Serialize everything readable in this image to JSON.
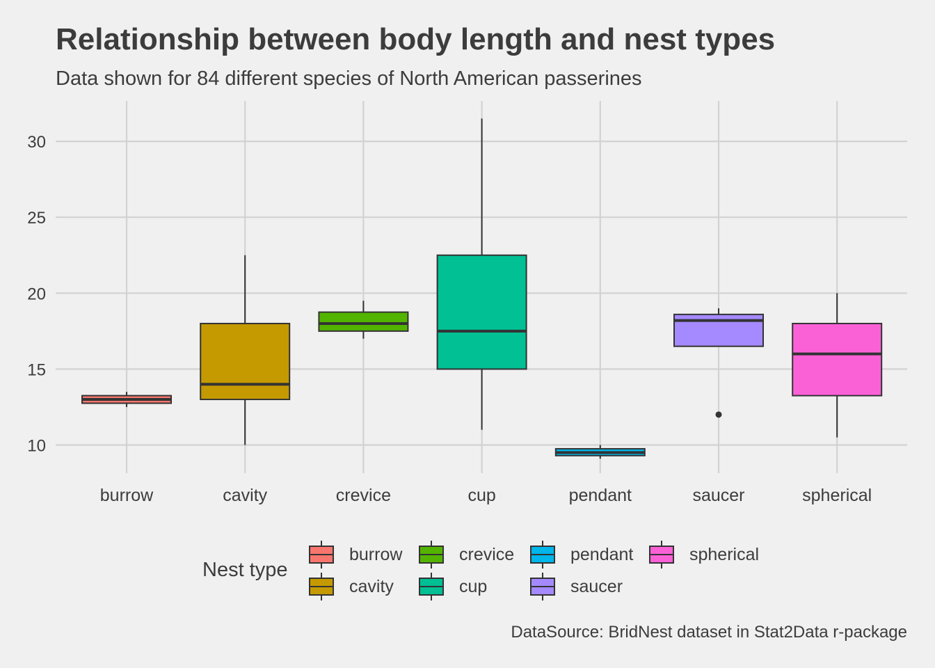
{
  "title": "Relationship between body length and nest types",
  "subtitle": "Data shown for 84 different species of North American passerines",
  "caption": "DataSource: BridNest dataset in Stat2Data r-package",
  "legend": {
    "title": "Nest type",
    "items": [
      "burrow",
      "crevice",
      "pendant",
      "spherical",
      "cavity",
      "cup",
      "saucer"
    ]
  },
  "colors": {
    "burrow": "#F8766D",
    "cavity": "#C49A00",
    "crevice": "#53B400",
    "cup": "#00C094",
    "pendant": "#00B6EB",
    "saucer": "#A58AFF",
    "spherical": "#FB61D7",
    "background": "#f0f0f0",
    "grid": "#d2d2d2",
    "outline": "#333333"
  },
  "chart_data": {
    "type": "boxplot",
    "title": "Relationship between body length and nest types",
    "subtitle": "Data shown for 84 different species of North American passerines",
    "xlabel": "",
    "ylabel": "",
    "ylim": [
      8.4,
      32.6
    ],
    "yticks": [
      10,
      15,
      20,
      25,
      30
    ],
    "categories": [
      "burrow",
      "cavity",
      "crevice",
      "cup",
      "pendant",
      "saucer",
      "spherical"
    ],
    "boxes": [
      {
        "category": "burrow",
        "min": 12.5,
        "q1": 12.75,
        "median": 13.0,
        "q3": 13.25,
        "max": 13.5,
        "outliers": []
      },
      {
        "category": "cavity",
        "min": 10.0,
        "q1": 13.0,
        "median": 14.0,
        "q3": 18.0,
        "max": 22.5,
        "outliers": []
      },
      {
        "category": "crevice",
        "min": 17.0,
        "q1": 17.5,
        "median": 18.0,
        "q3": 18.75,
        "max": 19.5,
        "outliers": []
      },
      {
        "category": "cup",
        "min": 11.0,
        "q1": 15.0,
        "median": 17.5,
        "q3": 22.5,
        "max": 31.5,
        "outliers": []
      },
      {
        "category": "pendant",
        "min": 9.1,
        "q1": 9.3,
        "median": 9.5,
        "q3": 9.75,
        "max": 10.0,
        "outliers": []
      },
      {
        "category": "saucer",
        "min": 16.5,
        "q1": 16.5,
        "median": 18.2,
        "q3": 18.6,
        "max": 19.0,
        "outliers": [
          12.0
        ]
      },
      {
        "category": "spherical",
        "min": 10.5,
        "q1": 13.25,
        "median": 16.0,
        "q3": 18.0,
        "max": 20.0,
        "outliers": []
      }
    ],
    "grid": true,
    "legend_position": "bottom"
  }
}
